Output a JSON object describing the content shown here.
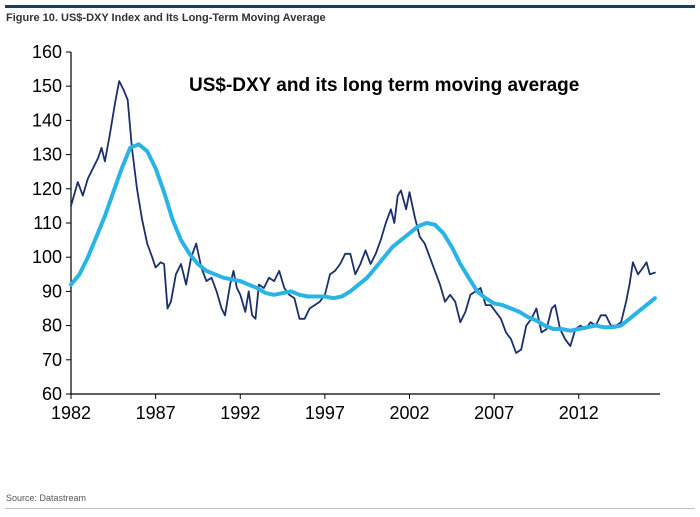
{
  "figure": {
    "title": "Figure 10. US$-DXY Index and Its Long-Term Moving Average",
    "source": "Source: Datastream"
  },
  "chart_data": {
    "type": "line",
    "title": "US$-DXY and its long term moving average",
    "xlabel": "",
    "ylabel": "",
    "xlim": [
      1982,
      2016.8
    ],
    "ylim": [
      60,
      160
    ],
    "x_ticks": [
      1982,
      1987,
      1992,
      1997,
      2002,
      2007,
      2012
    ],
    "y_ticks": [
      60,
      70,
      80,
      90,
      100,
      110,
      120,
      130,
      140,
      150,
      160
    ],
    "grid": false,
    "series": [
      {
        "name": "US$-DXY",
        "color": "#1b2f6b",
        "points": [
          [
            1982.0,
            115
          ],
          [
            1982.4,
            122
          ],
          [
            1982.7,
            118
          ],
          [
            1983.0,
            123
          ],
          [
            1983.3,
            126
          ],
          [
            1983.6,
            129
          ],
          [
            1983.8,
            132
          ],
          [
            1984.0,
            128
          ],
          [
            1984.3,
            136
          ],
          [
            1984.6,
            145
          ],
          [
            1984.85,
            151.5
          ],
          [
            1985.1,
            149
          ],
          [
            1985.35,
            146
          ],
          [
            1985.6,
            132
          ],
          [
            1985.9,
            120
          ],
          [
            1986.2,
            111
          ],
          [
            1986.5,
            104
          ],
          [
            1986.8,
            100
          ],
          [
            1987.0,
            97
          ],
          [
            1987.3,
            98.5
          ],
          [
            1987.5,
            98
          ],
          [
            1987.7,
            85
          ],
          [
            1987.9,
            87
          ],
          [
            1988.2,
            95
          ],
          [
            1988.5,
            98
          ],
          [
            1988.8,
            92
          ],
          [
            1989.1,
            100
          ],
          [
            1989.4,
            104
          ],
          [
            1989.7,
            97
          ],
          [
            1990.0,
            93
          ],
          [
            1990.3,
            94
          ],
          [
            1990.6,
            90
          ],
          [
            1990.9,
            85
          ],
          [
            1991.1,
            83
          ],
          [
            1991.4,
            92
          ],
          [
            1991.6,
            96
          ],
          [
            1991.8,
            91
          ],
          [
            1992.0,
            89
          ],
          [
            1992.3,
            84
          ],
          [
            1992.5,
            90
          ],
          [
            1992.7,
            83
          ],
          [
            1992.9,
            82
          ],
          [
            1993.1,
            92
          ],
          [
            1993.4,
            91
          ],
          [
            1993.7,
            94
          ],
          [
            1994.0,
            93
          ],
          [
            1994.3,
            96
          ],
          [
            1994.6,
            91
          ],
          [
            1994.9,
            89
          ],
          [
            1995.2,
            88
          ],
          [
            1995.5,
            82
          ],
          [
            1995.8,
            82
          ],
          [
            1996.1,
            85
          ],
          [
            1996.4,
            86
          ],
          [
            1996.7,
            87
          ],
          [
            1997.0,
            89
          ],
          [
            1997.3,
            95
          ],
          [
            1997.6,
            96
          ],
          [
            1997.9,
            98
          ],
          [
            1998.2,
            101
          ],
          [
            1998.5,
            101
          ],
          [
            1998.8,
            95
          ],
          [
            1999.1,
            98
          ],
          [
            1999.4,
            102
          ],
          [
            1999.7,
            98
          ],
          [
            2000.0,
            101
          ],
          [
            2000.3,
            105
          ],
          [
            2000.6,
            110
          ],
          [
            2000.9,
            114
          ],
          [
            2001.1,
            110
          ],
          [
            2001.3,
            118
          ],
          [
            2001.5,
            119.5
          ],
          [
            2001.8,
            114
          ],
          [
            2002.0,
            119
          ],
          [
            2002.3,
            112
          ],
          [
            2002.6,
            106
          ],
          [
            2002.9,
            104
          ],
          [
            2003.2,
            100
          ],
          [
            2003.5,
            96
          ],
          [
            2003.8,
            92
          ],
          [
            2004.1,
            87
          ],
          [
            2004.4,
            89
          ],
          [
            2004.7,
            87
          ],
          [
            2005.0,
            81
          ],
          [
            2005.3,
            84
          ],
          [
            2005.6,
            89
          ],
          [
            2005.9,
            90
          ],
          [
            2006.2,
            91
          ],
          [
            2006.5,
            86
          ],
          [
            2006.8,
            86
          ],
          [
            2007.1,
            84
          ],
          [
            2007.4,
            82
          ],
          [
            2007.7,
            78
          ],
          [
            2008.0,
            76
          ],
          [
            2008.3,
            72
          ],
          [
            2008.6,
            73
          ],
          [
            2008.9,
            80
          ],
          [
            2009.2,
            82
          ],
          [
            2009.5,
            85
          ],
          [
            2009.8,
            78
          ],
          [
            2010.1,
            79
          ],
          [
            2010.4,
            85
          ],
          [
            2010.6,
            86
          ],
          [
            2010.9,
            79
          ],
          [
            2011.2,
            76
          ],
          [
            2011.5,
            74
          ],
          [
            2011.8,
            79
          ],
          [
            2012.1,
            80
          ],
          [
            2012.4,
            79
          ],
          [
            2012.7,
            81
          ],
          [
            2013.0,
            80
          ],
          [
            2013.3,
            83
          ],
          [
            2013.6,
            83
          ],
          [
            2013.9,
            80
          ],
          [
            2014.2,
            80
          ],
          [
            2014.5,
            81
          ],
          [
            2014.8,
            87
          ],
          [
            2015.0,
            92
          ],
          [
            2015.2,
            98.5
          ],
          [
            2015.5,
            95
          ],
          [
            2015.8,
            97
          ],
          [
            2016.0,
            98.5
          ],
          [
            2016.2,
            95
          ],
          [
            2016.5,
            95.5
          ]
        ]
      },
      {
        "name": "Long-term moving average",
        "color": "#2ab4e6",
        "points": [
          [
            1982.0,
            92
          ],
          [
            1982.5,
            95
          ],
          [
            1983.0,
            100
          ],
          [
            1983.5,
            106
          ],
          [
            1984.0,
            112
          ],
          [
            1984.5,
            119
          ],
          [
            1985.0,
            126
          ],
          [
            1985.5,
            132
          ],
          [
            1986.0,
            133
          ],
          [
            1986.5,
            131
          ],
          [
            1987.0,
            126
          ],
          [
            1987.5,
            119
          ],
          [
            1988.0,
            111
          ],
          [
            1988.5,
            105
          ],
          [
            1989.0,
            101
          ],
          [
            1989.5,
            98
          ],
          [
            1990.0,
            96
          ],
          [
            1990.5,
            95
          ],
          [
            1991.0,
            94
          ],
          [
            1991.5,
            93.5
          ],
          [
            1992.0,
            93
          ],
          [
            1992.5,
            92
          ],
          [
            1993.0,
            91
          ],
          [
            1993.5,
            89.5
          ],
          [
            1994.0,
            89
          ],
          [
            1994.5,
            89.5
          ],
          [
            1995.0,
            90
          ],
          [
            1995.5,
            89
          ],
          [
            1996.0,
            88.5
          ],
          [
            1996.5,
            88.5
          ],
          [
            1997.0,
            88.5
          ],
          [
            1997.5,
            88
          ],
          [
            1998.0,
            88.5
          ],
          [
            1998.5,
            90
          ],
          [
            1999.0,
            92
          ],
          [
            1999.5,
            94
          ],
          [
            2000.0,
            97
          ],
          [
            2000.5,
            100
          ],
          [
            2001.0,
            103
          ],
          [
            2001.5,
            105
          ],
          [
            2002.0,
            107
          ],
          [
            2002.5,
            109
          ],
          [
            2003.0,
            110
          ],
          [
            2003.5,
            109.5
          ],
          [
            2004.0,
            107
          ],
          [
            2004.5,
            103
          ],
          [
            2005.0,
            98
          ],
          [
            2005.5,
            94
          ],
          [
            2006.0,
            90
          ],
          [
            2006.5,
            88
          ],
          [
            2007.0,
            86.5
          ],
          [
            2007.5,
            86
          ],
          [
            2008.0,
            85
          ],
          [
            2008.5,
            84
          ],
          [
            2009.0,
            82.5
          ],
          [
            2009.5,
            81.5
          ],
          [
            2010.0,
            80
          ],
          [
            2010.5,
            79
          ],
          [
            2011.0,
            79
          ],
          [
            2011.5,
            78.5
          ],
          [
            2012.0,
            79
          ],
          [
            2012.5,
            79.5
          ],
          [
            2013.0,
            80
          ],
          [
            2013.5,
            79.5
          ],
          [
            2014.0,
            79.5
          ],
          [
            2014.5,
            80
          ],
          [
            2015.0,
            82
          ],
          [
            2015.5,
            84
          ],
          [
            2016.0,
            86
          ],
          [
            2016.5,
            88
          ]
        ]
      }
    ]
  }
}
